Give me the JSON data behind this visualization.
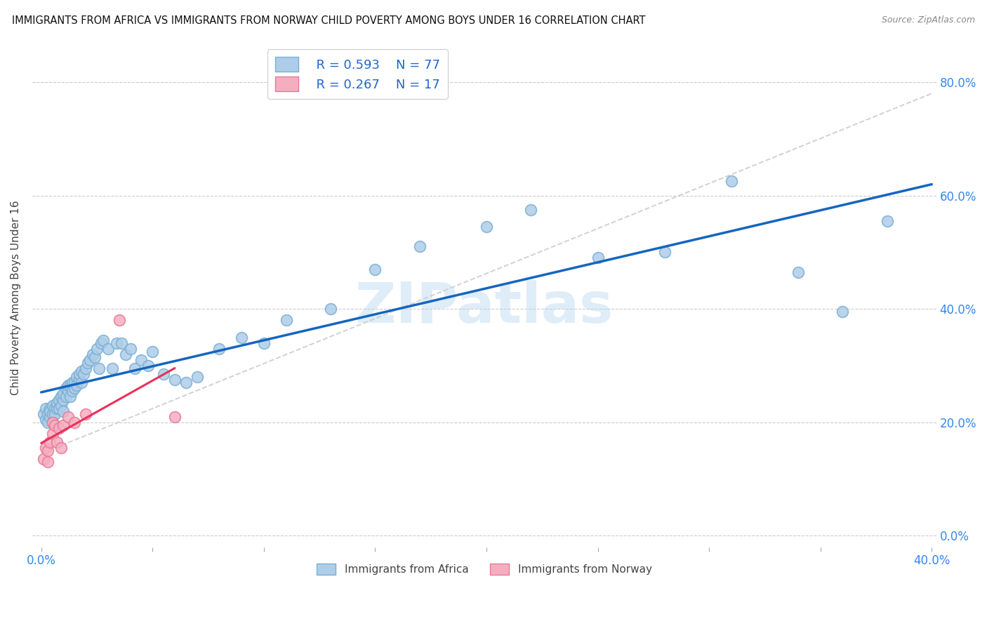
{
  "title": "IMMIGRANTS FROM AFRICA VS IMMIGRANTS FROM NORWAY CHILD POVERTY AMONG BOYS UNDER 16 CORRELATION CHART",
  "source": "Source: ZipAtlas.com",
  "ylabel": "Child Poverty Among Boys Under 16",
  "watermark": "ZIPatlas",
  "africa_color": "#aecde8",
  "africa_edge": "#7aafd4",
  "norway_color": "#f5aec0",
  "norway_edge": "#e87898",
  "africa_line_color": "#1565c0",
  "norway_line_color": "#e8315a",
  "dashed_line_color": "#cccccc",
  "legend_R_africa": "R = 0.593",
  "legend_N_africa": "N = 77",
  "legend_R_norway": "R = 0.267",
  "legend_N_norway": "N = 17",
  "africa_points_x": [
    0.001,
    0.002,
    0.002,
    0.003,
    0.003,
    0.004,
    0.004,
    0.004,
    0.005,
    0.005,
    0.005,
    0.006,
    0.006,
    0.007,
    0.007,
    0.008,
    0.008,
    0.009,
    0.009,
    0.01,
    0.01,
    0.01,
    0.011,
    0.011,
    0.012,
    0.012,
    0.013,
    0.013,
    0.014,
    0.014,
    0.015,
    0.015,
    0.016,
    0.016,
    0.017,
    0.017,
    0.018,
    0.018,
    0.019,
    0.02,
    0.021,
    0.022,
    0.023,
    0.024,
    0.025,
    0.026,
    0.027,
    0.028,
    0.03,
    0.032,
    0.034,
    0.036,
    0.038,
    0.04,
    0.042,
    0.045,
    0.048,
    0.05,
    0.055,
    0.06,
    0.065,
    0.07,
    0.08,
    0.09,
    0.1,
    0.11,
    0.13,
    0.15,
    0.17,
    0.2,
    0.22,
    0.25,
    0.28,
    0.31,
    0.34,
    0.36,
    0.38
  ],
  "africa_points_y": [
    0.215,
    0.205,
    0.225,
    0.215,
    0.2,
    0.21,
    0.225,
    0.22,
    0.215,
    0.23,
    0.2,
    0.225,
    0.215,
    0.225,
    0.235,
    0.24,
    0.225,
    0.23,
    0.245,
    0.24,
    0.25,
    0.22,
    0.26,
    0.245,
    0.255,
    0.265,
    0.265,
    0.245,
    0.27,
    0.255,
    0.26,
    0.27,
    0.28,
    0.265,
    0.275,
    0.285,
    0.29,
    0.27,
    0.285,
    0.295,
    0.305,
    0.31,
    0.32,
    0.315,
    0.33,
    0.295,
    0.34,
    0.345,
    0.33,
    0.295,
    0.34,
    0.34,
    0.32,
    0.33,
    0.295,
    0.31,
    0.3,
    0.325,
    0.285,
    0.275,
    0.27,
    0.28,
    0.33,
    0.35,
    0.34,
    0.38,
    0.4,
    0.47,
    0.51,
    0.545,
    0.575,
    0.49,
    0.5,
    0.625,
    0.465,
    0.395,
    0.555
  ],
  "norway_points_x": [
    0.001,
    0.002,
    0.003,
    0.003,
    0.004,
    0.005,
    0.005,
    0.006,
    0.007,
    0.008,
    0.009,
    0.01,
    0.012,
    0.015,
    0.02,
    0.035,
    0.06
  ],
  "norway_points_y": [
    0.135,
    0.155,
    0.13,
    0.15,
    0.165,
    0.18,
    0.2,
    0.195,
    0.165,
    0.19,
    0.155,
    0.195,
    0.21,
    0.2,
    0.215,
    0.38,
    0.21
  ]
}
